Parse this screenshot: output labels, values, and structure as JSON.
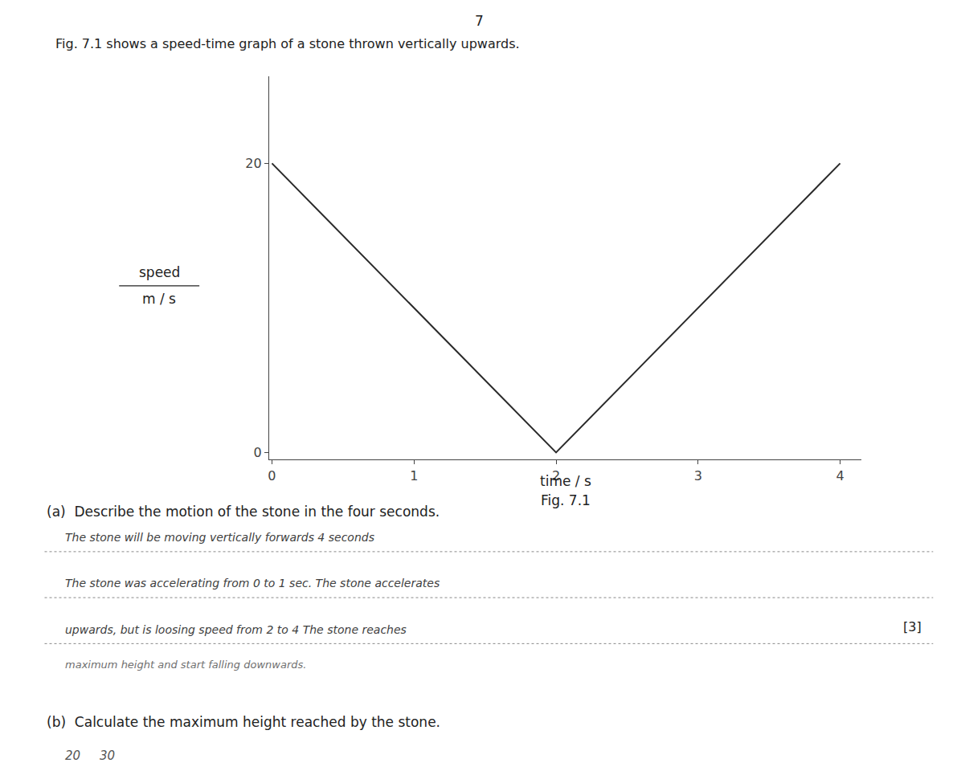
{
  "chart_data": {
    "type": "line",
    "title": "Fig. 7.1",
    "x_label": "time / s",
    "y_label": [
      "speed",
      "m / s"
    ],
    "x": [
      0,
      2,
      4
    ],
    "values": [
      20,
      0,
      20
    ],
    "color": "#2a2a2a",
    "xlim": [
      -0.02,
      4.15
    ],
    "ylim": [
      -0.5,
      26
    ],
    "xticks": [
      0,
      1,
      2,
      3,
      4
    ],
    "yticks": [
      0,
      20
    ],
    "grid": false,
    "annotations": [
      "7",
      "Fig. 7.1 shows a speed-time graph of a stone thrown vertically upwards.",
      "(a)  Describe the motion of the stone in the four seconds.",
      "The stone will be moving vertically forwards 4 seconds",
      "The stone was accelerating from 0 to 1 sec. The stone accelerates",
      "upwards, but is loosing speed from 2 to 4 The stone reaches",
      "[3]",
      "maximum height and start falling downwards.",
      "(b)  Calculate the maximum height reached by the stone.",
      "20     30"
    ]
  }
}
